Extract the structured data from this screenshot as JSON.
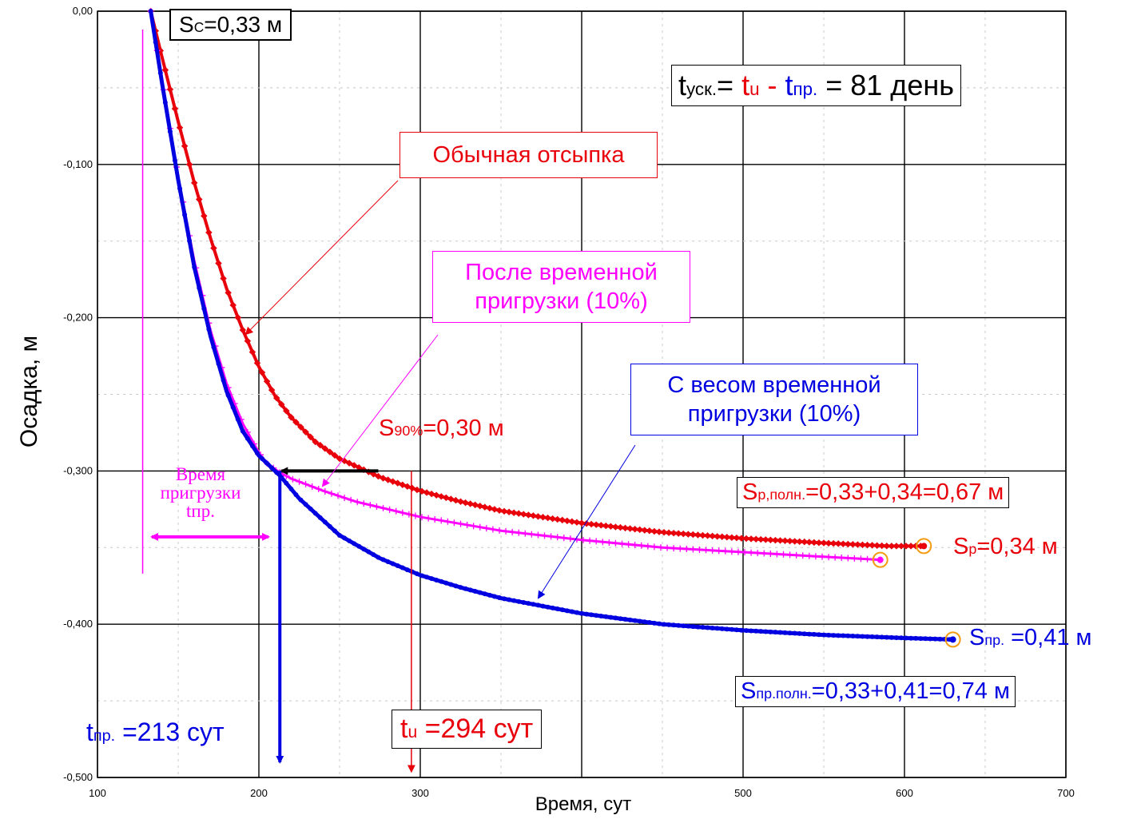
{
  "chart_data": {
    "type": "line",
    "xlabel": "Время, сут",
    "ylabel": "Осадка, м",
    "xlim": [
      100,
      700
    ],
    "ylim": [
      -0.5,
      0.0
    ],
    "x_ticks": [
      "100",
      "200",
      "300",
      "500",
      "600",
      "700"
    ],
    "y_ticks": [
      "0,00",
      "-0,100",
      "-0,200",
      "-0,300",
      "-0,400",
      "-0,500"
    ],
    "series": [
      {
        "name": "Обычная отсыпка",
        "color": "#e8000b",
        "x": [
          133,
          140,
          150,
          160,
          170,
          180,
          190,
          200,
          210,
          220,
          235,
          250,
          275,
          300,
          325,
          350,
          400,
          450,
          500,
          550,
          590,
          612
        ],
        "y": [
          0.0,
          -0.03,
          -0.072,
          -0.112,
          -0.148,
          -0.181,
          -0.208,
          -0.232,
          -0.251,
          -0.265,
          -0.281,
          -0.292,
          -0.304,
          -0.313,
          -0.32,
          -0.326,
          -0.334,
          -0.34,
          -0.344,
          -0.347,
          -0.349,
          -0.349
        ]
      },
      {
        "name": "После временной пригрузки (10%)",
        "color": "#ff00ff",
        "x": [
          133,
          140,
          150,
          160,
          170,
          180,
          190,
          200,
          205,
          213,
          220,
          240,
          260,
          280,
          300,
          350,
          400,
          450,
          500,
          550,
          585
        ],
        "y": [
          0.0,
          -0.045,
          -0.108,
          -0.163,
          -0.208,
          -0.243,
          -0.269,
          -0.288,
          -0.295,
          -0.301,
          -0.305,
          -0.313,
          -0.32,
          -0.325,
          -0.33,
          -0.339,
          -0.345,
          -0.35,
          -0.353,
          -0.356,
          -0.358
        ]
      },
      {
        "name": "С весом временной пригрузки (10%)",
        "color": "#0000e0",
        "x": [
          133,
          140,
          150,
          160,
          170,
          180,
          190,
          200,
          213,
          225,
          250,
          275,
          300,
          325,
          350,
          400,
          450,
          500,
          550,
          600,
          630
        ],
        "y": [
          0.0,
          -0.047,
          -0.11,
          -0.167,
          -0.212,
          -0.248,
          -0.274,
          -0.29,
          -0.303,
          -0.318,
          -0.342,
          -0.357,
          -0.368,
          -0.376,
          -0.383,
          -0.393,
          -0.4,
          -0.404,
          -0.407,
          -0.409,
          -0.41
        ]
      }
    ],
    "end_markers": [
      {
        "series": 0,
        "x": 612,
        "y": -0.349
      },
      {
        "series": 1,
        "x": 585,
        "y": -0.358
      },
      {
        "series": 2,
        "x": 630,
        "y": -0.41
      }
    ],
    "annotations": {
      "s90_level": -0.3,
      "t_pr": 213,
      "t_u": 294
    }
  },
  "labels": {
    "sc": {
      "main": "S",
      "sub": "С",
      "rest": "=0,33 м"
    },
    "formula": {
      "t1": "t",
      "sub1": "уск.",
      "eq": "= ",
      "t2": "t",
      "sub2": "u",
      "minus": " - ",
      "t3": "t",
      "sub3": "пр.",
      "rest": " = 81 день"
    },
    "ordinary": "Обычная отсыпка",
    "after_surcharge": "После временной пригрузки (10%)",
    "with_surcharge": "С весом временной пригрузки (10%)",
    "s90": {
      "main": "S",
      "sub": "90%",
      "rest": "=0,30 м"
    },
    "sp_full": {
      "main": "S",
      "sub": "р,полн.",
      "rest": "=0,33+0,34=0,67 м"
    },
    "sp": {
      "main": "S",
      "sub": "р",
      "rest": "=0,34 м"
    },
    "spr": {
      "main": "S",
      "sub": "пр.",
      "rest": " =0,41 м"
    },
    "spr_full": {
      "main": "S",
      "sub": "пр.полн.",
      "rest": "=0,33+0,41=0,74 м"
    },
    "tpr": {
      "main": "t",
      "sub": "пр.",
      "rest": " =213 сут"
    },
    "tu": {
      "main": "t",
      "sub": "u",
      "rest": " =294 сут"
    },
    "preload_time": {
      "line1": "Время",
      "line2": "пригрузки",
      "line3": "tпр."
    }
  },
  "colors": {
    "red": "#e8000b",
    "magenta": "#ff00ff",
    "blue": "#0000e0",
    "orange": "#f39c12"
  }
}
